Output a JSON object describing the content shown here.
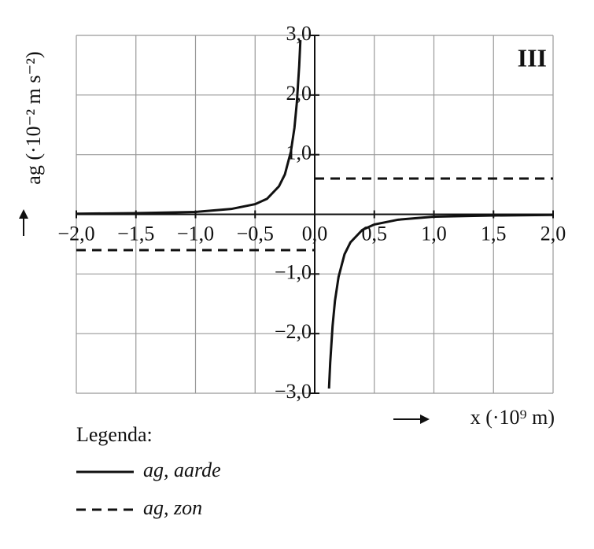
{
  "chart_data": {
    "type": "line",
    "annotation": "III",
    "x_label": "x (·10⁹ m)",
    "y_label": "ag (·10⁻² m s⁻²)",
    "legend_title": "Legenda:",
    "xlim": [
      -2,
      2
    ],
    "ylim": [
      -3,
      3
    ],
    "xticks": [
      {
        "value": -2,
        "label": "−2,0"
      },
      {
        "value": -1.5,
        "label": "−1,5"
      },
      {
        "value": -1,
        "label": "−1,0"
      },
      {
        "value": -0.5,
        "label": "−0,5"
      },
      {
        "value": 0,
        "label": "0,0"
      },
      {
        "value": 0.5,
        "label": "0,5"
      },
      {
        "value": 1,
        "label": "1,0"
      },
      {
        "value": 1.5,
        "label": "1,5"
      },
      {
        "value": 2,
        "label": "2,0"
      }
    ],
    "yticks": [
      {
        "value": 3,
        "label": "3,0"
      },
      {
        "value": 2,
        "label": "2,0"
      },
      {
        "value": 1,
        "label": "1,0"
      },
      {
        "value": -1,
        "label": "−1,0"
      },
      {
        "value": -2,
        "label": "−2,0"
      },
      {
        "value": -3,
        "label": "−3,0"
      }
    ],
    "grid": true,
    "series": [
      {
        "name": "ag, aarde",
        "color": "#111111",
        "dash": "solid",
        "x": [
          -2,
          -1.5,
          -1,
          -0.7,
          -0.5,
          -0.4,
          -0.3,
          -0.25,
          -0.2,
          -0.17,
          -0.15,
          -0.13,
          -0.12,
          0,
          0.12,
          0.13,
          0.15,
          0.17,
          0.2,
          0.25,
          0.3,
          0.4,
          0.5,
          0.7,
          1,
          1.5,
          2
        ],
        "values": [
          0.01,
          0.02,
          0.04,
          0.09,
          0.17,
          0.26,
          0.47,
          0.67,
          1.05,
          1.45,
          1.87,
          2.49,
          2.92,
          null,
          -2.92,
          -2.49,
          -1.87,
          -1.45,
          -1.05,
          -0.67,
          -0.47,
          -0.26,
          -0.17,
          -0.09,
          -0.04,
          -0.02,
          -0.01
        ]
      },
      {
        "name": "ag, zon",
        "color": "#111111",
        "dash": "dashed",
        "x": [
          -2,
          0,
          0,
          0,
          2
        ],
        "values": [
          -0.6,
          -0.6,
          null,
          0.6,
          0.6
        ]
      }
    ]
  }
}
